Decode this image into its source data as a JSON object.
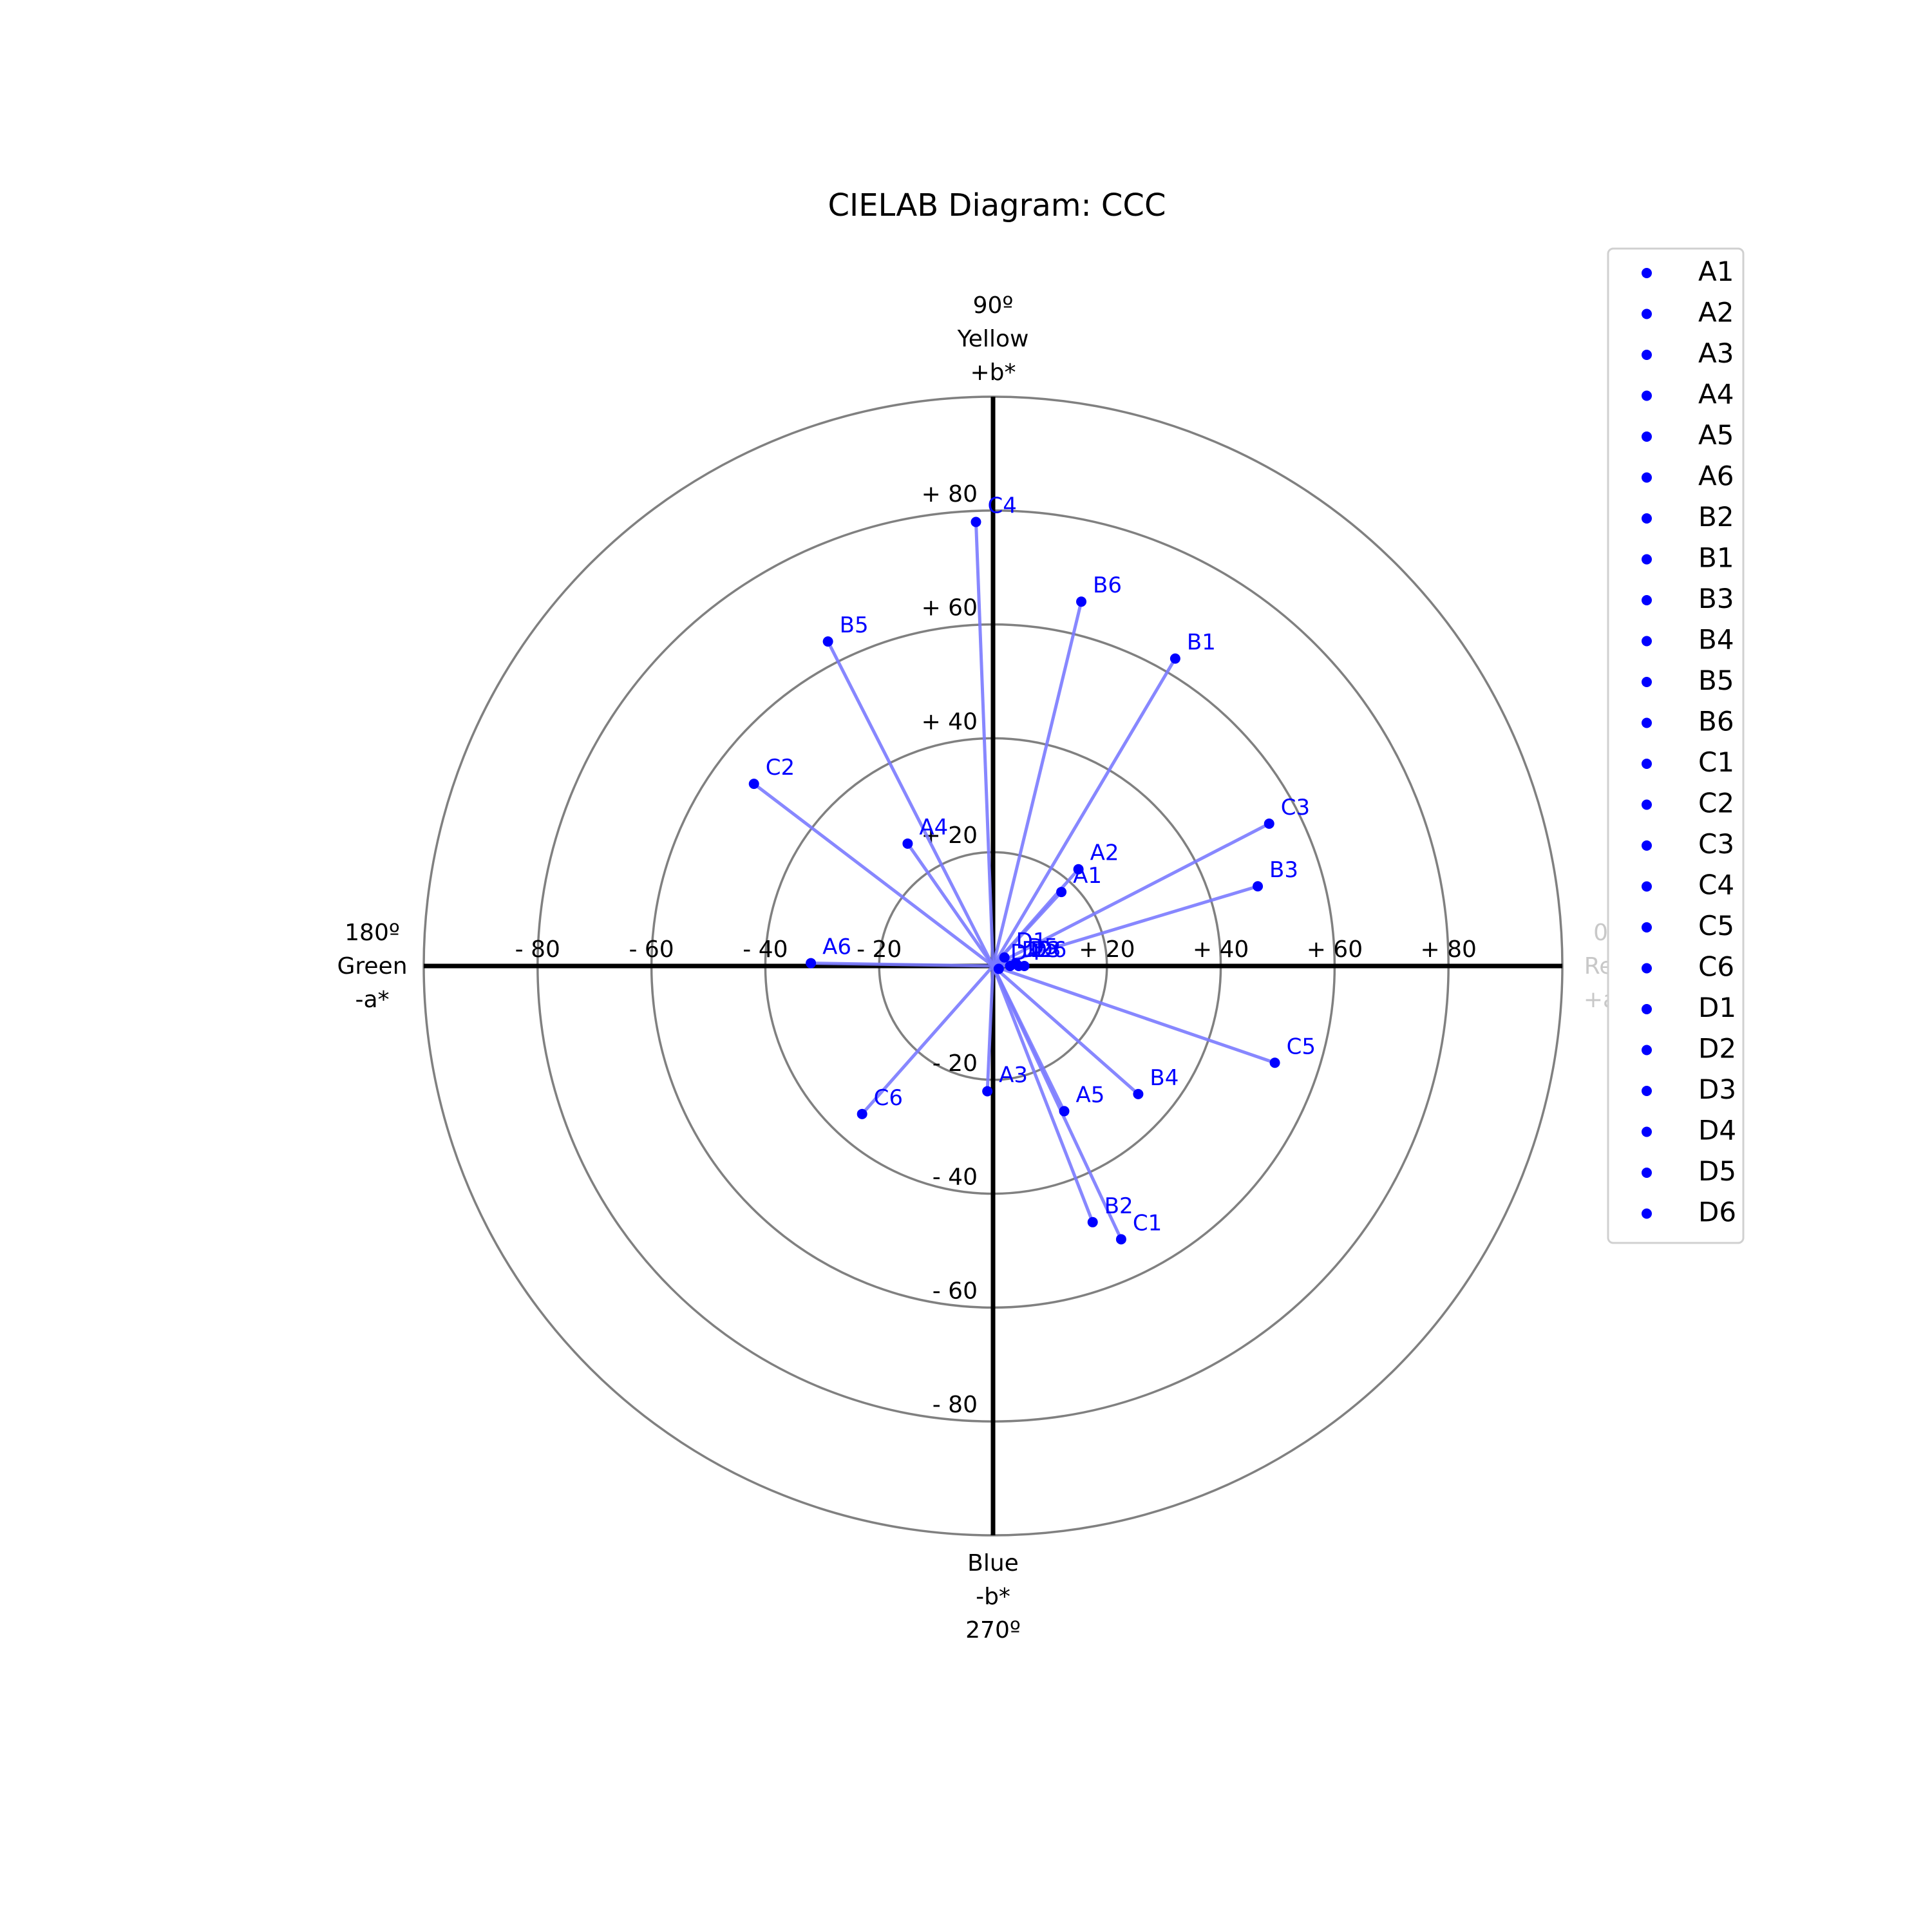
{
  "chart_data": {
    "type": "scatter",
    "subtype": "polar-cielab",
    "title": "CIELAB Diagram: CCC",
    "xlabel": "a*",
    "ylabel": "b*",
    "xlim": [
      -100,
      100
    ],
    "ylim": [
      -100,
      100
    ],
    "rings": [
      20,
      40,
      60,
      80,
      100
    ],
    "grid": true,
    "legend_position": "top-right",
    "colors": {
      "points": "#0000ff",
      "vectors": "#7a7aff",
      "rings": "#808080",
      "axes": "#000000"
    },
    "axis_labels": {
      "right": [
        "0º",
        "Red",
        "+a*"
      ],
      "top": [
        "90º",
        "Yellow",
        "+b*"
      ],
      "left": [
        "180º",
        "Green",
        "-a*"
      ],
      "bottom": [
        "Blue",
        "-b*",
        "270º"
      ]
    },
    "a_ticks": [
      {
        "value": -80,
        "label": "- 80"
      },
      {
        "value": -60,
        "label": "- 60"
      },
      {
        "value": -40,
        "label": "- 40"
      },
      {
        "value": -20,
        "label": "- 20"
      },
      {
        "value": 20,
        "label": "+ 20"
      },
      {
        "value": 40,
        "label": "+ 40"
      },
      {
        "value": 60,
        "label": "+ 60"
      },
      {
        "value": 80,
        "label": "+ 80"
      }
    ],
    "b_ticks": [
      {
        "value": 80,
        "label": "+ 80"
      },
      {
        "value": 60,
        "label": "+ 60"
      },
      {
        "value": 40,
        "label": "+ 40"
      },
      {
        "value": 20,
        "label": "+ 20"
      },
      {
        "value": -20,
        "label": "- 20"
      },
      {
        "value": -40,
        "label": "- 40"
      },
      {
        "value": -60,
        "label": "- 60"
      },
      {
        "value": -80,
        "label": "- 80"
      }
    ],
    "points": [
      {
        "name": "A1",
        "a": 12,
        "b": 13
      },
      {
        "name": "A2",
        "a": 15,
        "b": 17
      },
      {
        "name": "A3",
        "a": -1,
        "b": -22
      },
      {
        "name": "A4",
        "a": -15,
        "b": 21.5
      },
      {
        "name": "A5",
        "a": 12.5,
        "b": -25.5
      },
      {
        "name": "A6",
        "a": -32,
        "b": 0.5
      },
      {
        "name": "B2",
        "a": 17.5,
        "b": -45
      },
      {
        "name": "B1",
        "a": 32,
        "b": 54
      },
      {
        "name": "B3",
        "a": 46.5,
        "b": 14
      },
      {
        "name": "B4",
        "a": 25.5,
        "b": -22.5
      },
      {
        "name": "B5",
        "a": -29,
        "b": 57
      },
      {
        "name": "B6",
        "a": 15.5,
        "b": 64
      },
      {
        "name": "C1",
        "a": 22.5,
        "b": -48
      },
      {
        "name": "C2",
        "a": -42,
        "b": 32
      },
      {
        "name": "C3",
        "a": 48.5,
        "b": 25
      },
      {
        "name": "C4",
        "a": -3,
        "b": 78
      },
      {
        "name": "C5",
        "a": 49.5,
        "b": -17
      },
      {
        "name": "C6",
        "a": -23,
        "b": -26
      },
      {
        "name": "D1",
        "a": 2,
        "b": 1.5
      },
      {
        "name": "D2",
        "a": 3,
        "b": 0
      },
      {
        "name": "D3",
        "a": 4.5,
        "b": 0
      },
      {
        "name": "D4",
        "a": 1,
        "b": -0.5
      },
      {
        "name": "D5",
        "a": 4,
        "b": 0.5
      },
      {
        "name": "D6",
        "a": 5.5,
        "b": 0
      }
    ]
  }
}
